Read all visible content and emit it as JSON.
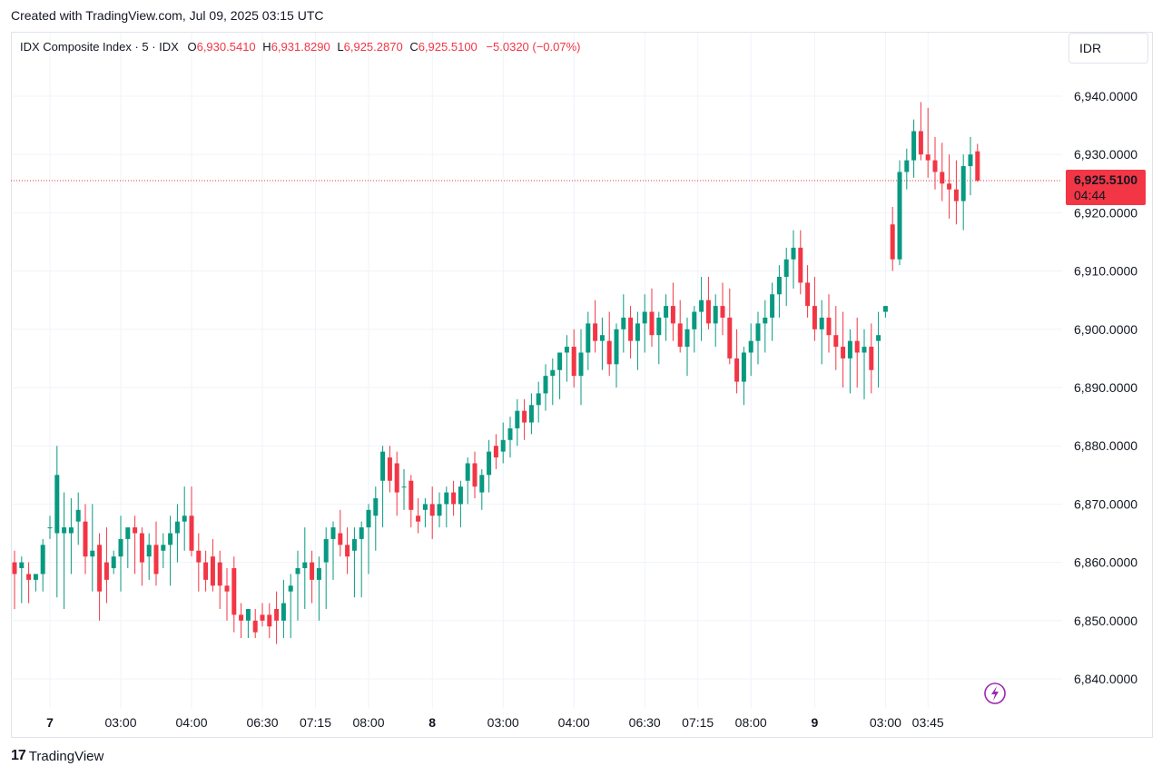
{
  "header": {
    "created_text": "Created with TradingView.com, Jul 09, 2025 03:15 UTC"
  },
  "legend": {
    "symbol": "IDX Composite Index · 5 · IDX",
    "o_label": "O",
    "o_value": "6,930.5410",
    "h_label": "H",
    "h_value": "6,931.8290",
    "l_label": "L",
    "l_value": "6,925.2870",
    "c_label": "C",
    "c_value": "6,925.5100",
    "change": "−5.0320 (−0.07%)"
  },
  "currency": "IDR",
  "price_tag": {
    "price": "6,925.5100",
    "countdown": "04:44"
  },
  "footer": {
    "brand": "TradingView"
  },
  "colors": {
    "up": "#089981",
    "down": "#f23645",
    "grid": "#f0f3fa",
    "text": "#131722"
  },
  "chart_data": {
    "type": "candlestick",
    "title": "IDX Composite Index · 5 · IDX",
    "last_price": 6925.51,
    "y_axis_ticks": [
      "6,840.0000",
      "6,850.0000",
      "6,860.0000",
      "6,870.0000",
      "6,880.0000",
      "6,890.0000",
      "6,900.0000",
      "6,910.0000",
      "6,920.0000",
      "6,930.0000",
      "6,940.0000"
    ],
    "y_tick_values": [
      6840,
      6850,
      6860,
      6870,
      6880,
      6890,
      6900,
      6910,
      6920,
      6930,
      6940
    ],
    "x_axis_ticks": [
      {
        "label": "7",
        "index": 5,
        "bold": true
      },
      {
        "label": "03:00",
        "index": 15
      },
      {
        "label": "04:00",
        "index": 25
      },
      {
        "label": "06:30",
        "index": 35
      },
      {
        "label": "07:15",
        "index": 42.5
      },
      {
        "label": "08:00",
        "index": 50
      },
      {
        "label": "8",
        "index": 59,
        "bold": true
      },
      {
        "label": "03:00",
        "index": 69
      },
      {
        "label": "04:00",
        "index": 79
      },
      {
        "label": "06:30",
        "index": 89
      },
      {
        "label": "07:15",
        "index": 96.5
      },
      {
        "label": "08:00",
        "index": 104
      },
      {
        "label": "9",
        "index": 113,
        "bold": true
      },
      {
        "label": "03:00",
        "index": 123
      },
      {
        "label": "03:45",
        "index": 129
      }
    ],
    "candles": [
      [
        6860,
        6862,
        6852,
        6858
      ],
      [
        6859,
        6861,
        6853,
        6860
      ],
      [
        6858,
        6860,
        6853,
        6857
      ],
      [
        6857,
        6858,
        6855,
        6858
      ],
      [
        6858,
        6864,
        6855,
        6863
      ],
      [
        6866,
        6868,
        6864,
        6866
      ],
      [
        6865,
        6880,
        6854,
        6875
      ],
      [
        6865,
        6872,
        6852,
        6866
      ],
      [
        6865,
        6871,
        6858,
        6866
      ],
      [
        6867,
        6872,
        6863,
        6869
      ],
      [
        6867,
        6870,
        6858,
        6861
      ],
      [
        6861,
        6870,
        6855,
        6862
      ],
      [
        6863,
        6865,
        6850,
        6855
      ],
      [
        6860,
        6866,
        6853,
        6857
      ],
      [
        6859,
        6862,
        6858,
        6861
      ],
      [
        6861,
        6868,
        6855,
        6864
      ],
      [
        6864,
        6866,
        6859,
        6866
      ],
      [
        6866,
        6868,
        6858,
        6865
      ],
      [
        6865,
        6866,
        6856,
        6860
      ],
      [
        6861,
        6865,
        6857,
        6863
      ],
      [
        6863,
        6867,
        6856,
        6858
      ],
      [
        6862,
        6865,
        6859,
        6863
      ],
      [
        6863,
        6868,
        6856,
        6865
      ],
      [
        6865,
        6870,
        6860,
        6867
      ],
      [
        6867,
        6873,
        6862,
        6868
      ],
      [
        6868,
        6873,
        6861,
        6862
      ],
      [
        6862,
        6865,
        6855,
        6860
      ],
      [
        6860,
        6862,
        6855,
        6857
      ],
      [
        6861,
        6864,
        6855,
        6856
      ],
      [
        6860,
        6862,
        6852,
        6856
      ],
      [
        6856,
        6859,
        6850,
        6855
      ],
      [
        6859,
        6861,
        6848,
        6851
      ],
      [
        6851,
        6853,
        6847,
        6850
      ],
      [
        6850,
        6852,
        6847,
        6852
      ],
      [
        6850,
        6852,
        6847,
        6848
      ],
      [
        6851,
        6853,
        6849,
        6850
      ],
      [
        6851,
        6853,
        6847,
        6849
      ],
      [
        6852,
        6855,
        6846,
        6850
      ],
      [
        6850,
        6857,
        6847,
        6853
      ],
      [
        6855,
        6858,
        6847,
        6856
      ],
      [
        6858,
        6862,
        6850,
        6859
      ],
      [
        6859,
        6866,
        6852,
        6860
      ],
      [
        6860,
        6862,
        6853,
        6857
      ],
      [
        6857,
        6861,
        6850,
        6859
      ],
      [
        6860,
        6866,
        6852,
        6864
      ],
      [
        6864,
        6867,
        6857,
        6866
      ],
      [
        6865,
        6869,
        6861,
        6863
      ],
      [
        6863,
        6866,
        6858,
        6861
      ],
      [
        6862,
        6866,
        6854,
        6864
      ],
      [
        6864,
        6867,
        6854,
        6866
      ],
      [
        6866,
        6870,
        6858,
        6869
      ],
      [
        6868,
        6873,
        6862,
        6871
      ],
      [
        6874,
        6880,
        6866,
        6879
      ],
      [
        6878,
        6880,
        6872,
        6874
      ],
      [
        6877,
        6879,
        6868,
        6872
      ],
      [
        6873,
        6876,
        6869,
        6873
      ],
      [
        6874,
        6875,
        6866,
        6869
      ],
      [
        6868,
        6871,
        6865,
        6867
      ],
      [
        6869,
        6871,
        6866,
        6870
      ],
      [
        6870,
        6873,
        6864,
        6868
      ],
      [
        6868,
        6872,
        6866,
        6870
      ],
      [
        6870,
        6873,
        6866,
        6872
      ],
      [
        6872,
        6874,
        6868,
        6870
      ],
      [
        6870,
        6874,
        6866,
        6873
      ],
      [
        6874,
        6878,
        6870,
        6877
      ],
      [
        6877,
        6879,
        6871,
        6873
      ],
      [
        6872,
        6876,
        6869,
        6875
      ],
      [
        6875,
        6881,
        6872,
        6879
      ],
      [
        6880,
        6882,
        6876,
        6878
      ],
      [
        6879,
        6884,
        6877,
        6881
      ],
      [
        6881,
        6885,
        6878,
        6883
      ],
      [
        6883,
        6888,
        6880,
        6886
      ],
      [
        6886,
        6888,
        6881,
        6884
      ],
      [
        6884,
        6889,
        6882,
        6887
      ],
      [
        6887,
        6891,
        6884,
        6889
      ],
      [
        6889,
        6894,
        6886,
        6892
      ],
      [
        6892,
        6895,
        6887,
        6893
      ],
      [
        6893,
        6896,
        6888,
        6896
      ],
      [
        6896,
        6899,
        6891,
        6897
      ],
      [
        6897,
        6900,
        6890,
        6892
      ],
      [
        6892,
        6900,
        6887,
        6896
      ],
      [
        6896,
        6903,
        6893,
        6901
      ],
      [
        6901,
        6905,
        6896,
        6898
      ],
      [
        6898,
        6902,
        6893,
        6899
      ],
      [
        6898,
        6903,
        6892,
        6894
      ],
      [
        6894,
        6901,
        6890,
        6900
      ],
      [
        6900,
        6906,
        6896,
        6902
      ],
      [
        6902,
        6904,
        6895,
        6898
      ],
      [
        6898,
        6903,
        6893,
        6901
      ],
      [
        6901,
        6906,
        6896,
        6903
      ],
      [
        6903,
        6907,
        6897,
        6899
      ],
      [
        6899,
        6903,
        6894,
        6902
      ],
      [
        6902,
        6906,
        6898,
        6904
      ],
      [
        6904,
        6908,
        6898,
        6901
      ],
      [
        6901,
        6905,
        6896,
        6897
      ],
      [
        6897,
        6902,
        6892,
        6900
      ],
      [
        6900,
        6904,
        6896,
        6903
      ],
      [
        6903,
        6909,
        6898,
        6905
      ],
      [
        6905,
        6909,
        6900,
        6901
      ],
      [
        6901,
        6906,
        6897,
        6904
      ],
      [
        6904,
        6908,
        6899,
        6902
      ],
      [
        6902,
        6907,
        6894,
        6895
      ],
      [
        6895,
        6900,
        6889,
        6891
      ],
      [
        6891,
        6897,
        6887,
        6896
      ],
      [
        6896,
        6901,
        6892,
        6898
      ],
      [
        6898,
        6903,
        6894,
        6901
      ],
      [
        6901,
        6905,
        6896,
        6902
      ],
      [
        6902,
        6908,
        6898,
        6906
      ],
      [
        6906,
        6911,
        6902,
        6909
      ],
      [
        6909,
        6914,
        6904,
        6912
      ],
      [
        6912,
        6917,
        6907,
        6914
      ],
      [
        6914,
        6917,
        6906,
        6908
      ],
      [
        6908,
        6911,
        6902,
        6904
      ],
      [
        6904,
        6909,
        6898,
        6900
      ],
      [
        6900,
        6905,
        6894,
        6902
      ],
      [
        6902,
        6906,
        6896,
        6899
      ],
      [
        6899,
        6904,
        6893,
        6897
      ],
      [
        6897,
        6903,
        6890,
        6895
      ],
      [
        6895,
        6900,
        6889,
        6898
      ],
      [
        6898,
        6902,
        6890,
        6896
      ],
      [
        6896,
        6900,
        6888,
        6897
      ],
      [
        6897,
        6901,
        6889,
        6893
      ],
      [
        6898,
        6903,
        6890,
        6899
      ],
      [
        6903,
        6904,
        6902,
        6904
      ],
      [
        6918,
        6921,
        6910,
        6912
      ],
      [
        6912,
        6929,
        6911,
        6927
      ],
      [
        6927,
        6931,
        6924,
        6929
      ],
      [
        6929,
        6936,
        6926,
        6934
      ],
      [
        6934,
        6939,
        6929,
        6930
      ],
      [
        6930,
        6938,
        6926,
        6929
      ],
      [
        6929,
        6933,
        6924,
        6927
      ],
      [
        6927,
        6932,
        6922,
        6925
      ],
      [
        6925,
        6930,
        6919,
        6924
      ],
      [
        6924,
        6929,
        6918,
        6922
      ],
      [
        6922,
        6930,
        6917,
        6928
      ],
      [
        6928,
        6933,
        6923,
        6930
      ],
      [
        6930.541,
        6931.829,
        6925.287,
        6925.51
      ]
    ]
  }
}
